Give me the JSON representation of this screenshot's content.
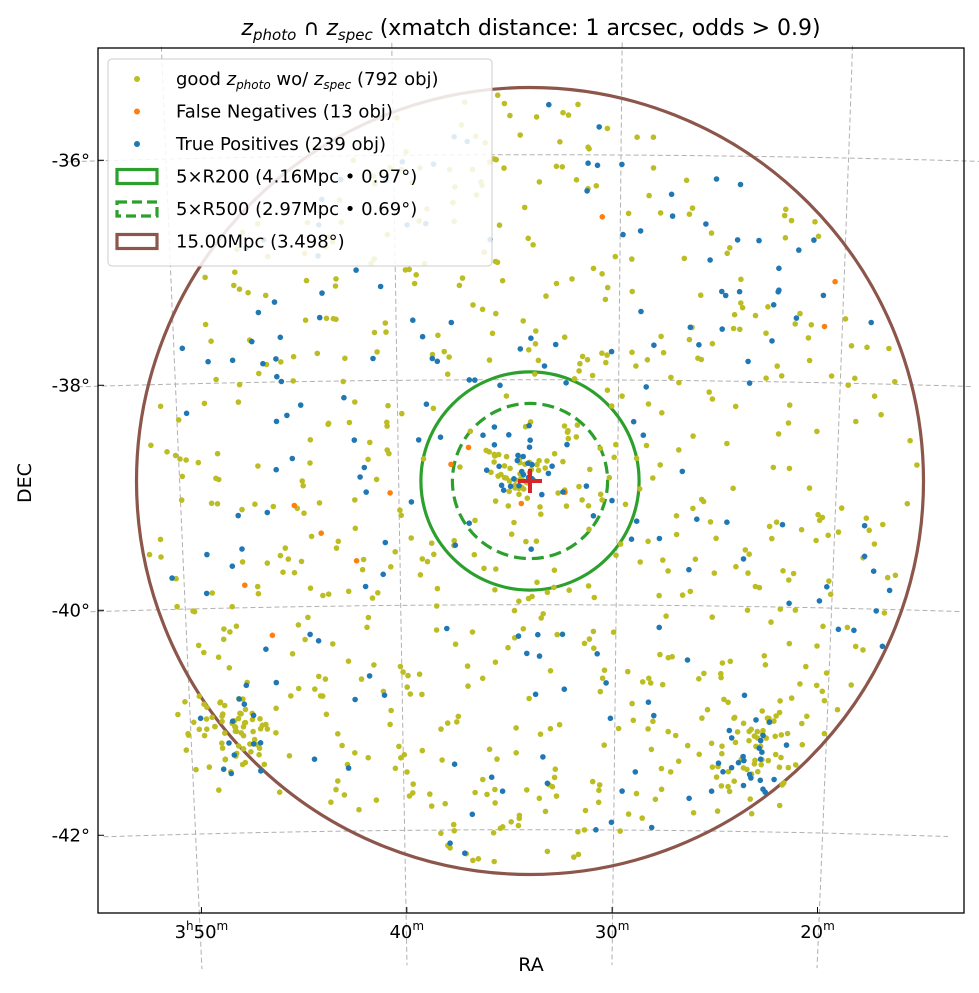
{
  "chart_data": {
    "type": "scatter",
    "title": {
      "part1": "z",
      "sub1": "photo",
      "cap": " ∩ ",
      "part2": "z",
      "sub2": "spec",
      "rest": " (xmatch distance: 1 arcsec, odds > 0.9)"
    },
    "xlabel": "RA",
    "ylabel": "DEC",
    "x_ticks": [
      {
        "ra": 57.5,
        "h": "3",
        "m": "50"
      },
      {
        "ra": 55.0,
        "m": "40"
      },
      {
        "ra": 52.5,
        "m": "30"
      },
      {
        "ra": 50.0,
        "m": "20"
      }
    ],
    "y_ticks": [
      {
        "dec": -36,
        "label": "-36°"
      },
      {
        "dec": -38,
        "label": "-38°"
      },
      {
        "dec": -40,
        "label": "-40°"
      },
      {
        "dec": -42,
        "label": "-42°"
      }
    ],
    "center": {
      "ra": 53.5,
      "dec": -38.9
    },
    "grid": true,
    "legend_position": "top-left",
    "legend": [
      {
        "kind": "point",
        "text_pre": "good ",
        "z1": "z",
        "s1": "photo",
        "text_mid": " wo/ ",
        "z2": "z",
        "s2": "spec",
        "text_post": " (792 obj)",
        "color": "#bcbd22"
      },
      {
        "kind": "point",
        "text": "False Negatives (13 obj)",
        "color": "#ff7f0e"
      },
      {
        "kind": "point",
        "text": "True Positives (239 obj)",
        "color": "#1f77b4"
      },
      {
        "kind": "rect",
        "text": "5×R200 (4.16Mpc • 0.97°)",
        "color": "#2ca02c",
        "dashed": false
      },
      {
        "kind": "rect",
        "text": "5×R500 (2.97Mpc • 0.69°)",
        "color": "#2ca02c",
        "dashed": true
      },
      {
        "kind": "rect",
        "text": "15.00Mpc (3.498°)",
        "color": "#8c564b",
        "dashed": false
      }
    ],
    "circles": [
      {
        "name": "5xR200",
        "radius_deg": 0.97,
        "color": "#2ca02c",
        "dashed": false
      },
      {
        "name": "5xR500",
        "radius_deg": 0.69,
        "color": "#2ca02c",
        "dashed": true
      },
      {
        "name": "15Mpc",
        "radius_deg": 3.498,
        "color": "#8c564b",
        "dashed": false
      }
    ],
    "series": [
      {
        "name": "good z_photo wo/ z_spec",
        "count": 792,
        "color": "#bcbd22"
      },
      {
        "name": "False Negatives",
        "count": 13,
        "color": "#ff7f0e",
        "points": [
          [
            52.7,
            -36.55
          ],
          [
            50.1,
            -37.1
          ],
          [
            50.2,
            -37.5
          ],
          [
            56.2,
            -39.1
          ],
          [
            55.1,
            -39.0
          ],
          [
            55.9,
            -39.35
          ],
          [
            56.5,
            -40.25
          ],
          [
            54.4,
            -38.75
          ],
          [
            53.1,
            -39.0
          ],
          [
            56.8,
            -39.8
          ],
          [
            54.2,
            -38.6
          ],
          [
            53.6,
            -39.1
          ],
          [
            55.5,
            -39.6
          ]
        ]
      },
      {
        "name": "True Positives",
        "count": 239,
        "color": "#1f77b4"
      }
    ]
  }
}
